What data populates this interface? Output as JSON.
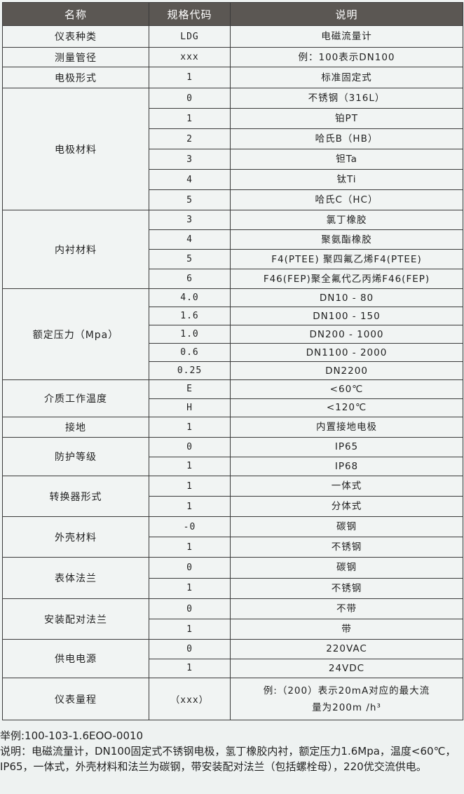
{
  "table": {
    "headers": [
      "名称",
      "规格代码",
      "说明"
    ],
    "groups": [
      {
        "name": "仪表种类",
        "rows": [
          {
            "code": "LDG",
            "desc": "电磁流量计"
          }
        ]
      },
      {
        "name": "测量管径",
        "rows": [
          {
            "code": "xxx",
            "desc": "例：100表示DN100"
          }
        ]
      },
      {
        "name": "电极形式",
        "rows": [
          {
            "code": "1",
            "desc": "标准固定式"
          }
        ]
      },
      {
        "name": "电极材料",
        "rows": [
          {
            "code": "0",
            "desc": "不锈钢（316L）"
          },
          {
            "code": "1",
            "desc": "铂PT"
          },
          {
            "code": "2",
            "desc": "哈氏B（HB）"
          },
          {
            "code": "3",
            "desc": "钽Ta"
          },
          {
            "code": "4",
            "desc": "钛Ti"
          },
          {
            "code": "5",
            "desc": "哈氏C（HC）"
          }
        ]
      },
      {
        "name": "内衬材料",
        "rows": [
          {
            "code": "3",
            "desc": "氯丁橡胶"
          },
          {
            "code": "4",
            "desc": "聚氨酯橡胶"
          },
          {
            "code": "5",
            "desc": "F4(PTEE) 聚四氟乙烯F4(PTEE)"
          },
          {
            "code": "6",
            "desc": "F46(FEP)聚全氟代乙丙烯F46(FEP)"
          }
        ]
      },
      {
        "name": "额定压力（Mpa）",
        "rows": [
          {
            "code": "4.0",
            "desc": "DN10 - 80"
          },
          {
            "code": "1.6",
            "desc": "DN100 - 150"
          },
          {
            "code": "1.0",
            "desc": "DN200 - 1000"
          },
          {
            "code": "0.6",
            "desc": "DN1100 - 2000"
          },
          {
            "code": "0.25",
            "desc": "DN2200"
          }
        ]
      },
      {
        "name": "介质工作温度",
        "rows": [
          {
            "code": "E",
            "desc": "<60℃"
          },
          {
            "code": "H",
            "desc": "<120℃"
          }
        ]
      },
      {
        "name": "接地",
        "rows": [
          {
            "code": "1",
            "desc": "内置接地电极"
          }
        ]
      },
      {
        "name": "防护等级",
        "rows": [
          {
            "code": "0",
            "desc": "IP65"
          },
          {
            "code": "1",
            "desc": "IP68"
          }
        ]
      },
      {
        "name": "转换器形式",
        "rows": [
          {
            "code": "1",
            "desc": "一体式"
          },
          {
            "code": "1",
            "desc": "分体式"
          }
        ]
      },
      {
        "name": "外壳材料",
        "rows": [
          {
            "code": "-0",
            "desc": "碳钢"
          },
          {
            "code": "1",
            "desc": "不锈钢"
          }
        ]
      },
      {
        "name": "表体法兰",
        "rows": [
          {
            "code": "0",
            "desc": "碳钢"
          },
          {
            "code": "1",
            "desc": "不锈钢"
          }
        ]
      },
      {
        "name": "安装配对法兰",
        "rows": [
          {
            "code": "0",
            "desc": "不带"
          },
          {
            "code": "1",
            "desc": "带"
          }
        ]
      },
      {
        "name": "供电电源",
        "rows": [
          {
            "code": "0",
            "desc": "220VAC"
          },
          {
            "code": "1",
            "desc": "24VDC"
          }
        ]
      },
      {
        "name": "仪表量程",
        "rows": [
          {
            "code": "（xxx）",
            "desc": "例:（200）表示20mA对应的最大流量为200m /h³"
          }
        ]
      }
    ]
  },
  "notes": {
    "example": "举例:100-103-1.6EOO-0010",
    "explanation": "说明：电磁流量计，DN100固定式不锈钢电极，氢丁橡胶内衬，额定压力1.6Mpa，温度<60℃，IP65，一体式，外壳材料和法兰为碳钢，带安装配对法兰（包括螺栓母），220优交流供电。"
  }
}
